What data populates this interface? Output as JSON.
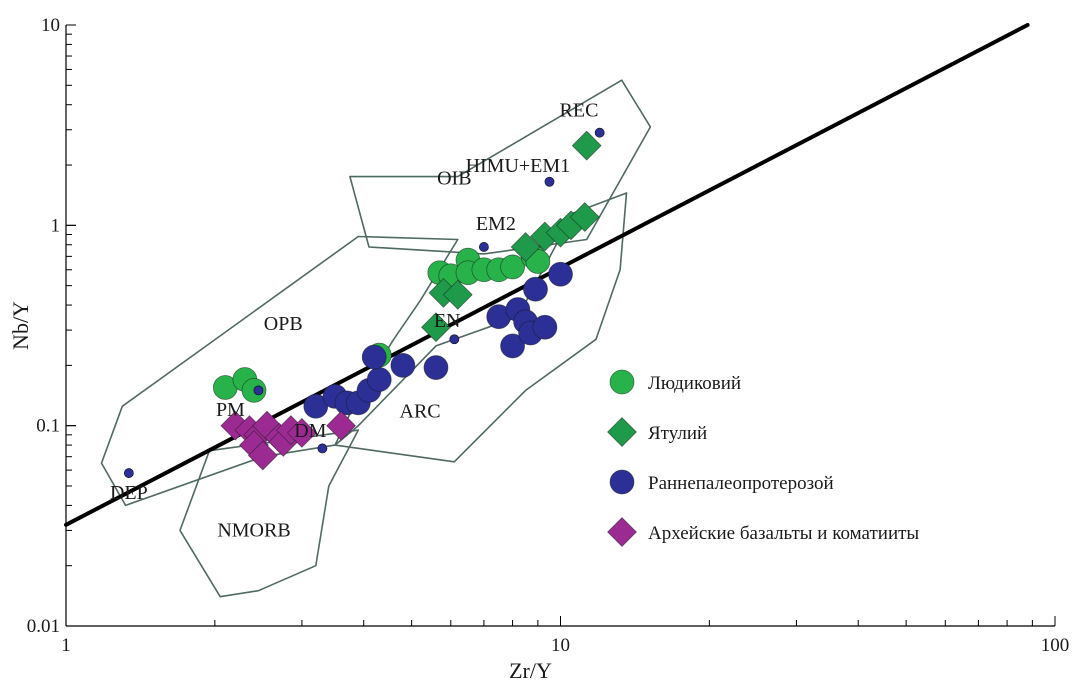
{
  "chart_data": {
    "type": "scatter",
    "title": "",
    "xlabel": "Zr/Y",
    "ylabel": "Nb/Y",
    "x_scale": "log",
    "y_scale": "log",
    "xlim": [
      1,
      100
    ],
    "ylim": [
      0.01,
      10
    ],
    "x_ticks": [
      {
        "value": 1,
        "label": "1"
      },
      {
        "value": 10,
        "label": "10"
      },
      {
        "value": 100,
        "label": "100"
      }
    ],
    "y_ticks": [
      {
        "value": 0.01,
        "label": "0.01"
      },
      {
        "value": 0.1,
        "label": "0.1"
      },
      {
        "value": 1,
        "label": "1"
      },
      {
        "value": 10,
        "label": "10"
      }
    ],
    "grid": false,
    "legend_position": "right-middle",
    "colors": {
      "ludikovian": "#27b24a",
      "jatulian": "#1f9a4a",
      "early_paleoproterozoic": "#2b2f96",
      "archean": "#9c2a93",
      "field_outline": "#4f6a62",
      "reference_line": "#000000",
      "reference_point": "#2b2f96"
    },
    "trend_line": {
      "x": [
        1,
        88
      ],
      "y": [
        0.032,
        10
      ]
    },
    "fields": [
      {
        "label": "OIB",
        "label_at": [
          6.1,
          1.6
        ],
        "polygon": [
          [
            6.2,
            1.75
          ],
          [
            13.3,
            5.3
          ],
          [
            15.2,
            3.1
          ],
          [
            11.3,
            0.85
          ],
          [
            7.0,
            0.72
          ],
          [
            4.1,
            0.78
          ],
          [
            3.75,
            1.75
          ]
        ]
      },
      {
        "label": "OPB",
        "label_at": [
          2.75,
          0.3
        ],
        "polygon": [
          [
            3.9,
            0.88
          ],
          [
            6.2,
            0.85
          ],
          [
            5.2,
            0.42
          ],
          [
            4.6,
            0.27
          ],
          [
            3.9,
            0.14
          ],
          [
            3.5,
            0.08
          ],
          [
            2.5,
            0.07
          ],
          [
            1.32,
            0.04
          ],
          [
            1.18,
            0.065
          ],
          [
            1.3,
            0.125
          ]
        ]
      },
      {
        "label": "ARC",
        "label_at": [
          5.2,
          0.11
        ],
        "polygon": [
          [
            3.9,
            0.1
          ],
          [
            5.6,
            0.25
          ],
          [
            8.2,
            0.35
          ],
          [
            10.6,
            1.15
          ],
          [
            13.6,
            1.45
          ],
          [
            13.2,
            0.6
          ],
          [
            11.8,
            0.27
          ],
          [
            8.5,
            0.15
          ],
          [
            6.1,
            0.066
          ],
          [
            3.5,
            0.08
          ]
        ]
      },
      {
        "label": "NMORB",
        "label_at": [
          2.4,
          0.028
        ],
        "polygon": [
          [
            1.95,
            0.075
          ],
          [
            3.9,
            0.095
          ],
          [
            3.4,
            0.05
          ],
          [
            3.2,
            0.02
          ],
          [
            2.45,
            0.015
          ],
          [
            2.05,
            0.014
          ],
          [
            1.7,
            0.03
          ]
        ]
      }
    ],
    "reference_points": [
      {
        "label": "REC",
        "x": 12.0,
        "y": 2.9,
        "label_at": [
          10.9,
          3.5
        ]
      },
      {
        "label": "HIMU+EM1",
        "x": 9.5,
        "y": 1.65,
        "label_at": [
          8.2,
          1.85
        ]
      },
      {
        "label": "EM2",
        "x": 7.0,
        "y": 0.78,
        "label_at": [
          7.4,
          0.95
        ]
      },
      {
        "label": "EN",
        "x": 6.1,
        "y": 0.27,
        "label_at": [
          5.9,
          0.31
        ]
      },
      {
        "label": "PM",
        "x": 2.45,
        "y": 0.15,
        "label_at": [
          2.15,
          0.112
        ]
      },
      {
        "label": "DM",
        "x": 3.3,
        "y": 0.077,
        "label_at": [
          3.12,
          0.088
        ]
      },
      {
        "label": "DEP",
        "x": 1.34,
        "y": 0.058,
        "label_at": [
          1.34,
          0.043
        ]
      }
    ],
    "series": [
      {
        "name": "Людиковий",
        "marker": "circle",
        "color": "#27b24a",
        "points": [
          {
            "x": 2.1,
            "y": 0.155
          },
          {
            "x": 2.3,
            "y": 0.17
          },
          {
            "x": 2.4,
            "y": 0.15
          },
          {
            "x": 4.3,
            "y": 0.225
          },
          {
            "x": 5.7,
            "y": 0.58
          },
          {
            "x": 6.0,
            "y": 0.56
          },
          {
            "x": 6.5,
            "y": 0.67
          },
          {
            "x": 6.5,
            "y": 0.58
          },
          {
            "x": 7.0,
            "y": 0.6
          },
          {
            "x": 7.5,
            "y": 0.6
          },
          {
            "x": 8.0,
            "y": 0.62
          },
          {
            "x": 8.8,
            "y": 0.7
          },
          {
            "x": 9.0,
            "y": 0.66
          }
        ]
      },
      {
        "name": "Ятулий",
        "marker": "diamond",
        "color": "#1f9a4a",
        "points": [
          {
            "x": 5.6,
            "y": 0.31
          },
          {
            "x": 5.8,
            "y": 0.46
          },
          {
            "x": 6.2,
            "y": 0.45
          },
          {
            "x": 8.5,
            "y": 0.78
          },
          {
            "x": 9.3,
            "y": 0.88
          },
          {
            "x": 10.0,
            "y": 0.92
          },
          {
            "x": 10.5,
            "y": 1.0
          },
          {
            "x": 11.2,
            "y": 1.1
          },
          {
            "x": 11.3,
            "y": 2.5
          }
        ]
      },
      {
        "name": "Раннепалеопротерозой",
        "marker": "circle",
        "color": "#2b2f96",
        "points": [
          {
            "x": 3.2,
            "y": 0.125
          },
          {
            "x": 3.5,
            "y": 0.14
          },
          {
            "x": 3.7,
            "y": 0.13
          },
          {
            "x": 3.9,
            "y": 0.13
          },
          {
            "x": 4.1,
            "y": 0.15
          },
          {
            "x": 4.3,
            "y": 0.17
          },
          {
            "x": 4.2,
            "y": 0.22
          },
          {
            "x": 4.8,
            "y": 0.2
          },
          {
            "x": 5.6,
            "y": 0.195
          },
          {
            "x": 7.5,
            "y": 0.35
          },
          {
            "x": 8.0,
            "y": 0.25
          },
          {
            "x": 8.2,
            "y": 0.38
          },
          {
            "x": 8.5,
            "y": 0.33
          },
          {
            "x": 8.7,
            "y": 0.29
          },
          {
            "x": 8.9,
            "y": 0.48
          },
          {
            "x": 9.3,
            "y": 0.31
          },
          {
            "x": 10.0,
            "y": 0.57
          }
        ]
      },
      {
        "name": "Архейские базальты и коматииты",
        "marker": "diamond",
        "color": "#9c2a93",
        "points": [
          {
            "x": 2.2,
            "y": 0.1
          },
          {
            "x": 2.35,
            "y": 0.095
          },
          {
            "x": 2.45,
            "y": 0.09
          },
          {
            "x": 2.55,
            "y": 0.1
          },
          {
            "x": 2.4,
            "y": 0.08
          },
          {
            "x": 2.5,
            "y": 0.071
          },
          {
            "x": 2.7,
            "y": 0.087
          },
          {
            "x": 2.75,
            "y": 0.083
          },
          {
            "x": 2.85,
            "y": 0.095
          },
          {
            "x": 3.0,
            "y": 0.092
          },
          {
            "x": 3.6,
            "y": 0.1
          }
        ]
      }
    ],
    "legend": [
      {
        "label": "Людиковий",
        "marker": "circle",
        "color": "#27b24a"
      },
      {
        "label": "Ятулий",
        "marker": "diamond",
        "color": "#1f9a4a"
      },
      {
        "label": "Раннепалеопротерозой",
        "marker": "circle",
        "color": "#2b2f96"
      },
      {
        "label": "Архейские базальты и коматииты",
        "marker": "diamond",
        "color": "#9c2a93"
      }
    ]
  }
}
